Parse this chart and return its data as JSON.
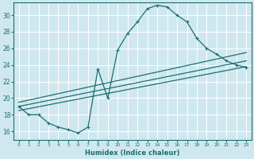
{
  "xlabel": "Humidex (Indice chaleur)",
  "bg_color": "#cfe8ef",
  "grid_color": "#b8d8e0",
  "line_color": "#1a7070",
  "xlim": [
    -0.5,
    23.5
  ],
  "ylim": [
    15.0,
    31.5
  ],
  "xticks": [
    0,
    1,
    2,
    3,
    4,
    5,
    6,
    7,
    8,
    9,
    10,
    11,
    12,
    13,
    14,
    15,
    16,
    17,
    18,
    19,
    20,
    21,
    22,
    23
  ],
  "yticks": [
    16,
    18,
    20,
    22,
    24,
    26,
    28,
    30
  ],
  "curve1_x": [
    0,
    1,
    2,
    3,
    4,
    5,
    6,
    7,
    8,
    9,
    10,
    11,
    12,
    13,
    14,
    15,
    16,
    17,
    18,
    19,
    20,
    21,
    22,
    23
  ],
  "curve1_y": [
    19.0,
    18.0,
    18.0,
    17.0,
    16.5,
    16.2,
    15.8,
    16.5,
    23.5,
    20.0,
    25.8,
    27.8,
    29.2,
    30.8,
    31.2,
    31.0,
    30.0,
    29.2,
    27.2,
    26.0,
    25.3,
    24.5,
    24.0,
    23.7
  ],
  "line1_x": [
    0,
    23
  ],
  "line1_y": [
    19.0,
    24.5
  ],
  "line2_x": [
    0,
    23
  ],
  "line2_y": [
    19.5,
    25.5
  ],
  "line3_x": [
    0,
    23
  ],
  "line3_y": [
    18.5,
    23.8
  ]
}
